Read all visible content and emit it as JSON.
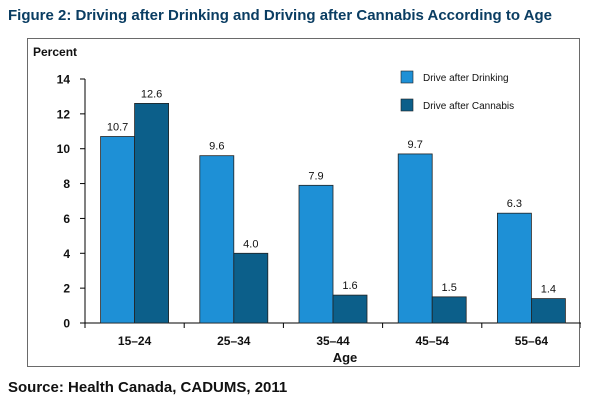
{
  "figure": {
    "title": "Figure 2: Driving after Drinking and Driving after Cannabis According to Age",
    "source": "Source: Health Canada, CADUMS, 2011"
  },
  "chart_data": {
    "type": "bar",
    "ylabel": "Percent",
    "xlabel": "Age",
    "categories": [
      "15–24",
      "25–34",
      "35–44",
      "45–54",
      "55–64"
    ],
    "ylim": [
      0,
      14
    ],
    "yticks": [
      0,
      2,
      4,
      6,
      8,
      10,
      12,
      14
    ],
    "grid": false,
    "legend_position": "top-right",
    "series": [
      {
        "name": "Drive after Drinking",
        "color": "#1e90d6",
        "values": [
          10.7,
          9.6,
          7.9,
          9.7,
          6.3
        ],
        "labels": [
          "10.7",
          "9.6",
          "7.9",
          "9.7",
          "6.3"
        ]
      },
      {
        "name": "Drive after Cannabis",
        "color": "#0c5f8a",
        "values": [
          12.6,
          4.0,
          1.6,
          1.5,
          1.4
        ],
        "labels": [
          "12.6",
          "4.0",
          "1.6",
          "1.5",
          "1.4"
        ]
      }
    ]
  }
}
